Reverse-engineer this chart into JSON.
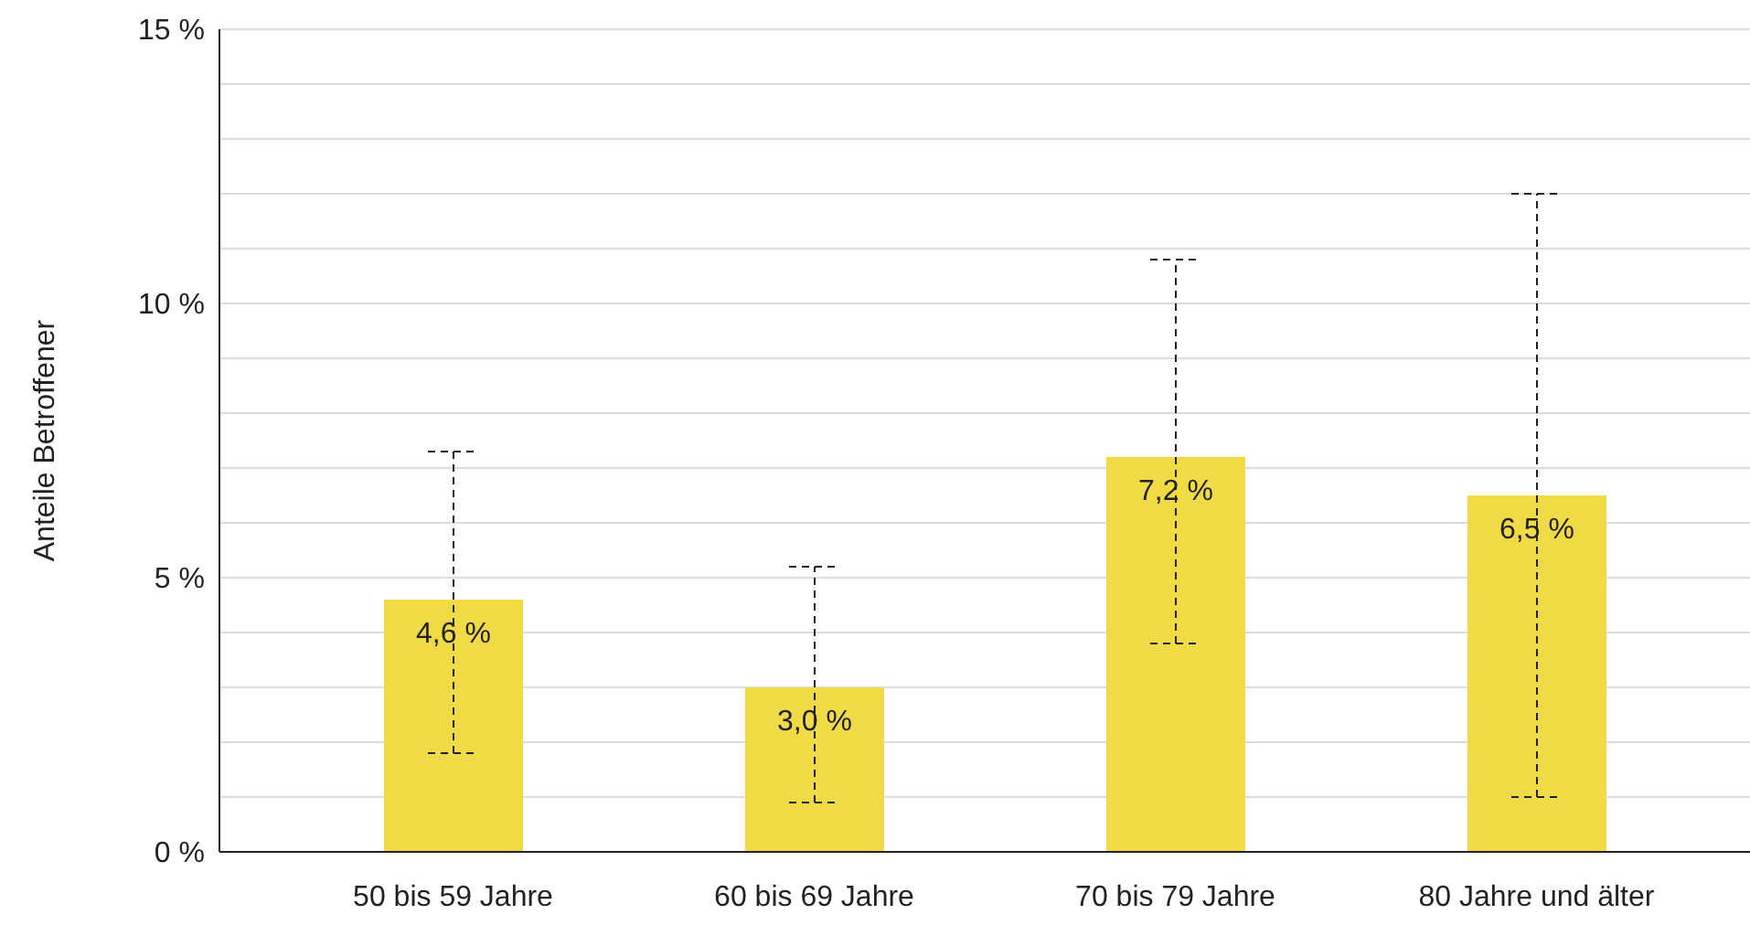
{
  "chart_data": {
    "type": "bar",
    "ylabel": "Anteile Betroffener",
    "categories": [
      "50 bis 59 Jahre",
      "60 bis 69 Jahre",
      "70 bis 79 Jahre",
      "80 Jahre und älter"
    ],
    "values": [
      4.6,
      3.0,
      7.2,
      6.5
    ],
    "color": "#f0da46",
    "errors": [
      [
        1.8,
        7.3
      ],
      [
        0.9,
        5.2
      ],
      [
        3.8,
        10.8
      ],
      [
        1.0,
        12.0
      ]
    ],
    "value_labels": [
      "4,6 %",
      "3,0 %",
      "7,2 %",
      "6,5 %"
    ],
    "ylim": [
      0,
      15
    ],
    "yticks": [
      {
        "value": 0,
        "label": "0 %"
      },
      {
        "value": 1,
        "label": null
      },
      {
        "value": 2,
        "label": null
      },
      {
        "value": 3,
        "label": null
      },
      {
        "value": 4,
        "label": null
      },
      {
        "value": 5,
        "label": "5 %"
      },
      {
        "value": 6,
        "label": null
      },
      {
        "value": 7,
        "label": null
      },
      {
        "value": 8,
        "label": null
      },
      {
        "value": 9,
        "label": null
      },
      {
        "value": 10,
        "label": "10 %"
      },
      {
        "value": 11,
        "label": null
      },
      {
        "value": 12,
        "label": null
      },
      {
        "value": 13,
        "label": null
      },
      {
        "value": 14,
        "label": null
      },
      {
        "value": 15,
        "label": "15 %"
      }
    ],
    "grid": "y"
  }
}
